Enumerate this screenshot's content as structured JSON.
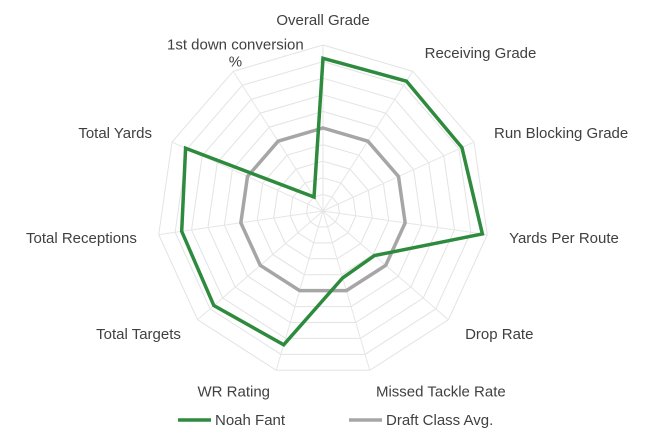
{
  "chart_data": {
    "type": "radar",
    "title": "",
    "axes": [
      "Overall Grade",
      "Receiving Grade",
      "Run Blocking Grade",
      "Yards Per Route",
      "Drop Rate",
      "Missed Tackle Rate",
      "WR Rating",
      "Total Targets",
      "Total Receptions",
      "Total Yards",
      "1st down conversion %"
    ],
    "range": [
      0,
      100
    ],
    "rings": 10,
    "grid": true,
    "legend_position": "bottom",
    "series": [
      {
        "name": "Noah Fant",
        "color": "#2e8b3e",
        "values": [
          92,
          93,
          92,
          97,
          41,
          42,
          84,
          87,
          86,
          91,
          10
        ]
      },
      {
        "name": "Draft Class Avg.",
        "color": "#a6a6a6",
        "values": [
          50,
          50,
          50,
          50,
          50,
          50,
          50,
          50,
          50,
          50,
          50
        ]
      }
    ]
  }
}
